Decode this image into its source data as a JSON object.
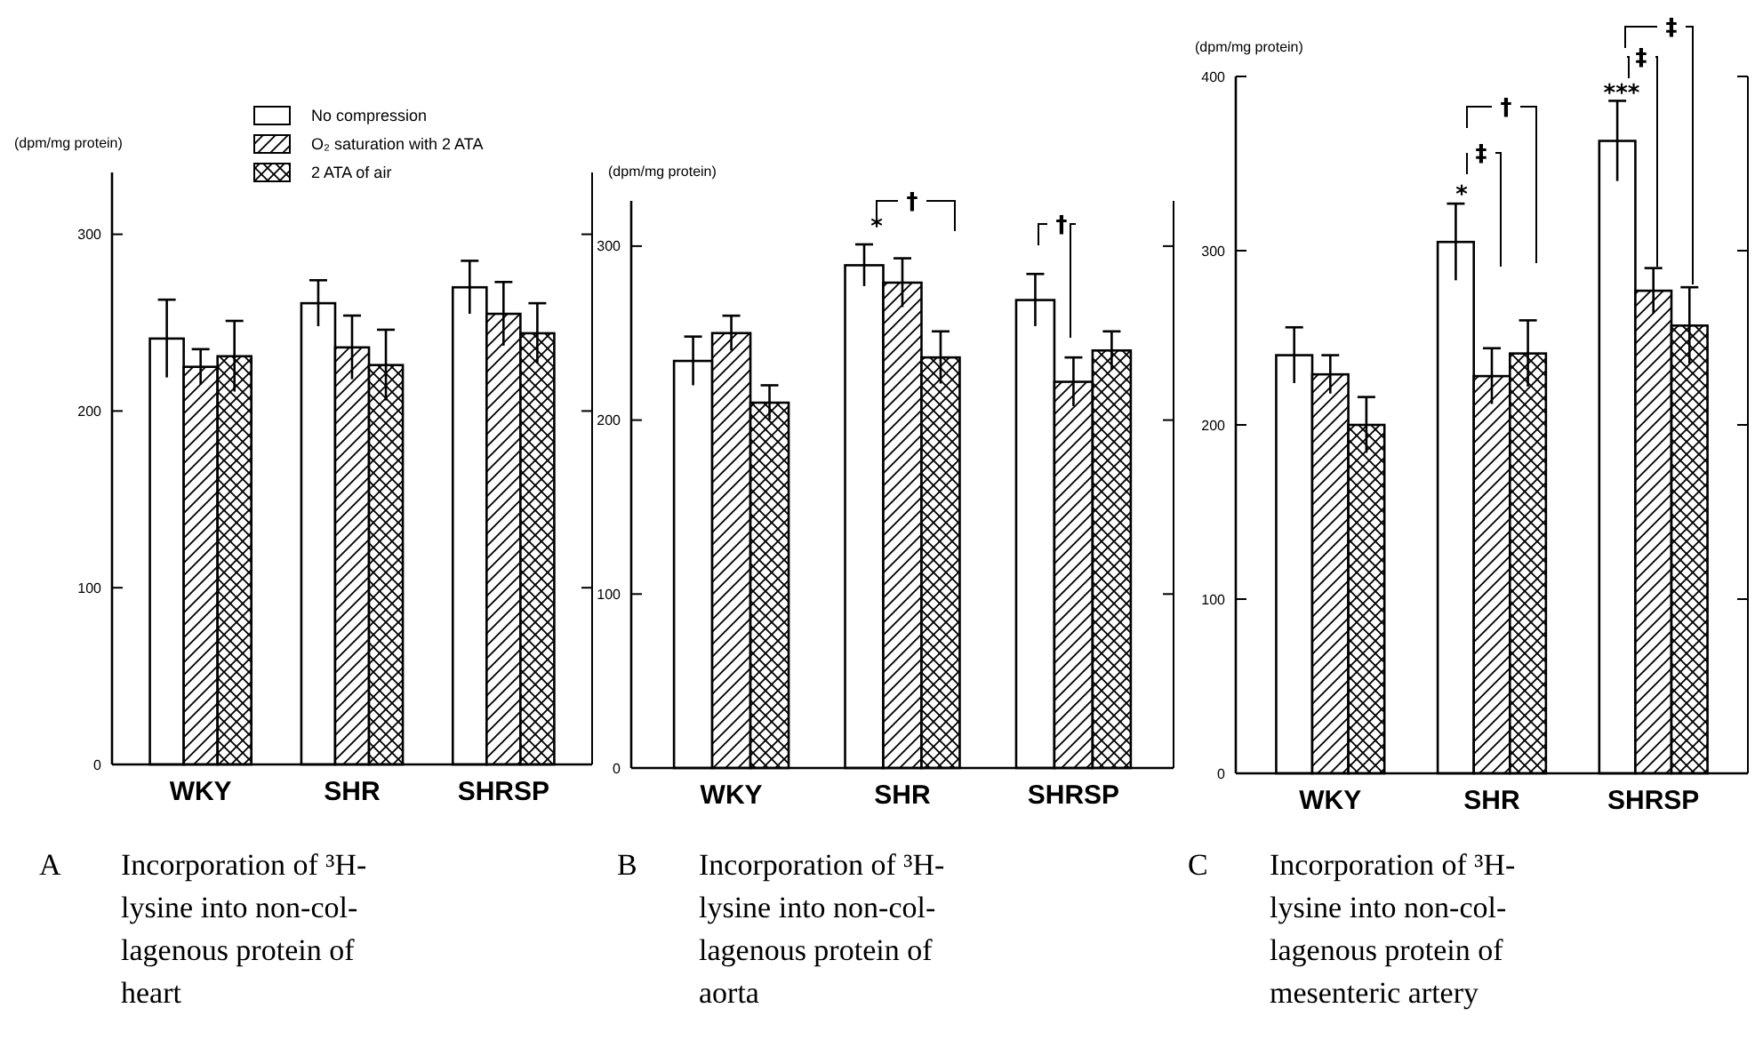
{
  "chart_data": [
    {
      "type": "bar",
      "title": "A Incorporation of ³H-\nlysine into non-col-\nlagenous protein of\nheart",
      "ylabel": "(dpm/mg protein)",
      "categories": [
        "WKY",
        "SHR",
        "SHRSP"
      ],
      "ylim": [
        0,
        335
      ],
      "yticks": [
        0,
        100,
        200,
        300
      ],
      "legend": "top",
      "grid": false,
      "series": [
        {
          "name": "No compression",
          "color": "#ffffff",
          "values": [
            241,
            261,
            270
          ],
          "errors": [
            22,
            13,
            15
          ]
        },
        {
          "name": "O₂ saturation with 2 ATA",
          "color": "#000000",
          "values": [
            225,
            236,
            255
          ],
          "errors": [
            10,
            18,
            18
          ]
        },
        {
          "name": "2 ATA of air",
          "color": "#000000",
          "values": [
            231,
            226,
            244
          ],
          "errors": [
            20,
            20,
            17
          ]
        }
      ]
    },
    {
      "type": "bar",
      "title": "B Incorporation of ³H-\nlysine into non-col-\nlagenous protein of\naorta",
      "ylabel": "(dpm/mg protein)",
      "categories": [
        "WKY",
        "SHR",
        "SHRSP"
      ],
      "ylim": [
        0,
        326
      ],
      "yticks": [
        0,
        100,
        200,
        300
      ],
      "legend": false,
      "grid": false,
      "series": [
        {
          "color": "#ffffff",
          "values": [
            234,
            289,
            269
          ],
          "errors": [
            14,
            12,
            15
          ]
        },
        {
          "color": "#000000",
          "values": [
            250,
            279,
            222
          ],
          "errors": [
            10,
            14,
            14
          ]
        },
        {
          "color": "#000000",
          "values": [
            210,
            236,
            240
          ],
          "errors": [
            10,
            15,
            11
          ]
        }
      ],
      "annotations": [
        "*",
        "†",
        "†"
      ]
    },
    {
      "type": "bar",
      "title": "C Incorporation of ³H-\nlysine into non-col-\nlagenous protein of\nmesenteric artery",
      "ylabel": "(dpm/mg protein)",
      "categories": [
        "WKY",
        "SHR",
        "SHRSP"
      ],
      "ylim": [
        0,
        400
      ],
      "yticks": [
        0,
        100,
        200,
        300,
        400
      ],
      "legend": false,
      "grid": false,
      "series": [
        {
          "color": "#ffffff",
          "values": [
            240,
            305,
            363
          ],
          "errors": [
            16,
            22,
            23
          ]
        },
        {
          "color": "#000000",
          "values": [
            229,
            228,
            277
          ],
          "errors": [
            11,
            16,
            13
          ]
        },
        {
          "color": "#000000",
          "values": [
            200,
            241,
            257
          ],
          "errors": [
            16,
            19,
            22
          ]
        }
      ],
      "annotations": [
        "*",
        "‡",
        "†",
        "***",
        "‡",
        "‡"
      ]
    }
  ]
}
